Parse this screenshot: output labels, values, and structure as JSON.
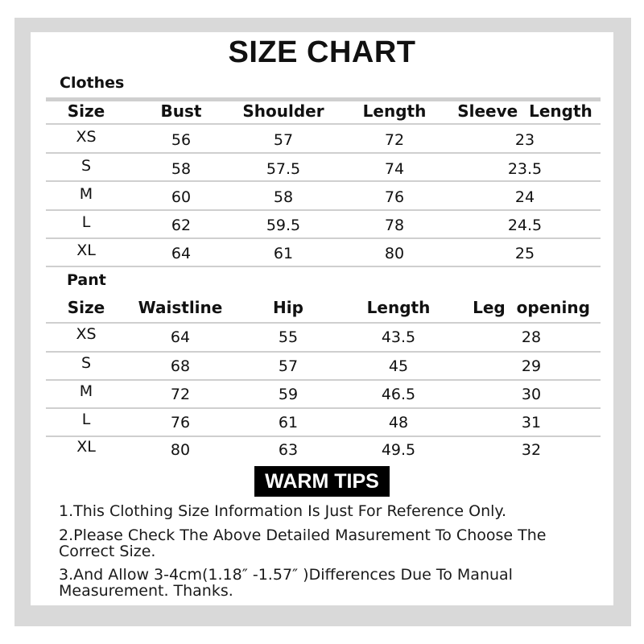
{
  "title": "SIZE CHART",
  "clothes": {
    "label": "Clothes",
    "headers": [
      "Size",
      "Bust",
      "Shoulder",
      "Length",
      "Sleeve  Length"
    ],
    "rows": [
      [
        "XS",
        "56",
        "57",
        "72",
        "23"
      ],
      [
        "S",
        "58",
        "57.5",
        "74",
        "23.5"
      ],
      [
        "M",
        "60",
        "58",
        "76",
        "24"
      ],
      [
        "L",
        "62",
        "59.5",
        "78",
        "24.5"
      ],
      [
        "XL",
        "64",
        "61",
        "80",
        "25"
      ]
    ]
  },
  "pant": {
    "label": "Pant",
    "headers": [
      "Size",
      "Waistline",
      "Hip",
      "Length",
      "Leg  opening"
    ],
    "rows": [
      [
        "XS",
        "64",
        "55",
        "43.5",
        "28"
      ],
      [
        "S",
        "68",
        "57",
        "45",
        "29"
      ],
      [
        "M",
        "72",
        "59",
        "46.5",
        "30"
      ],
      [
        "L",
        "76",
        "61",
        "48",
        "31"
      ],
      [
        "XL",
        "80",
        "63",
        "49.5",
        "32"
      ]
    ]
  },
  "warm_tips": {
    "label": "WARM TIPS",
    "items": [
      "1.This Clothing Size Information Is Just For Reference Only.",
      "2.Please Check The Above Detailed Masurement To Choose The Correct Size.",
      "3.And Allow 3-4cm(1.18″ -1.57″ )Differences Due To Manual Measurement. Thanks."
    ]
  }
}
